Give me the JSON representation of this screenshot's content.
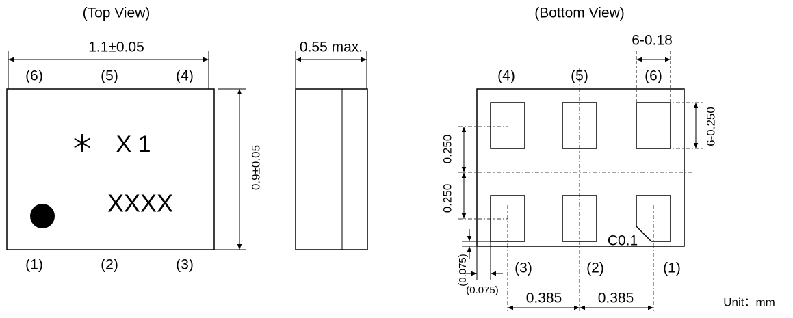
{
  "top_view": {
    "title": "(Top View)",
    "width": "1.1±0.05",
    "height": "0.9±0.05",
    "top_pins": [
      "(6)",
      "(5)",
      "(4)"
    ],
    "bottom_pins": [
      "(1)",
      "(2)",
      "(3)"
    ],
    "marking_symbol": "＊",
    "marking_line1": "X 1",
    "marking_line2": "XXXX"
  },
  "side_view": {
    "thickness": "0.55 max."
  },
  "bottom_view": {
    "title": "(Bottom View)",
    "pad_width": "6-0.18",
    "pad_length": "6-0.250",
    "top_pins": [
      "(4)",
      "(5)",
      "(6)"
    ],
    "bottom_pins": [
      "(3)",
      "(2)",
      "(1)"
    ],
    "pitch_y": [
      "0.250",
      "0.250"
    ],
    "chamfer": "C0.1",
    "edge_y": "(0.075)",
    "edge_x": "(0.075)",
    "pitch_x": [
      "0.385",
      "0.385"
    ]
  },
  "unit": "Unit：mm"
}
